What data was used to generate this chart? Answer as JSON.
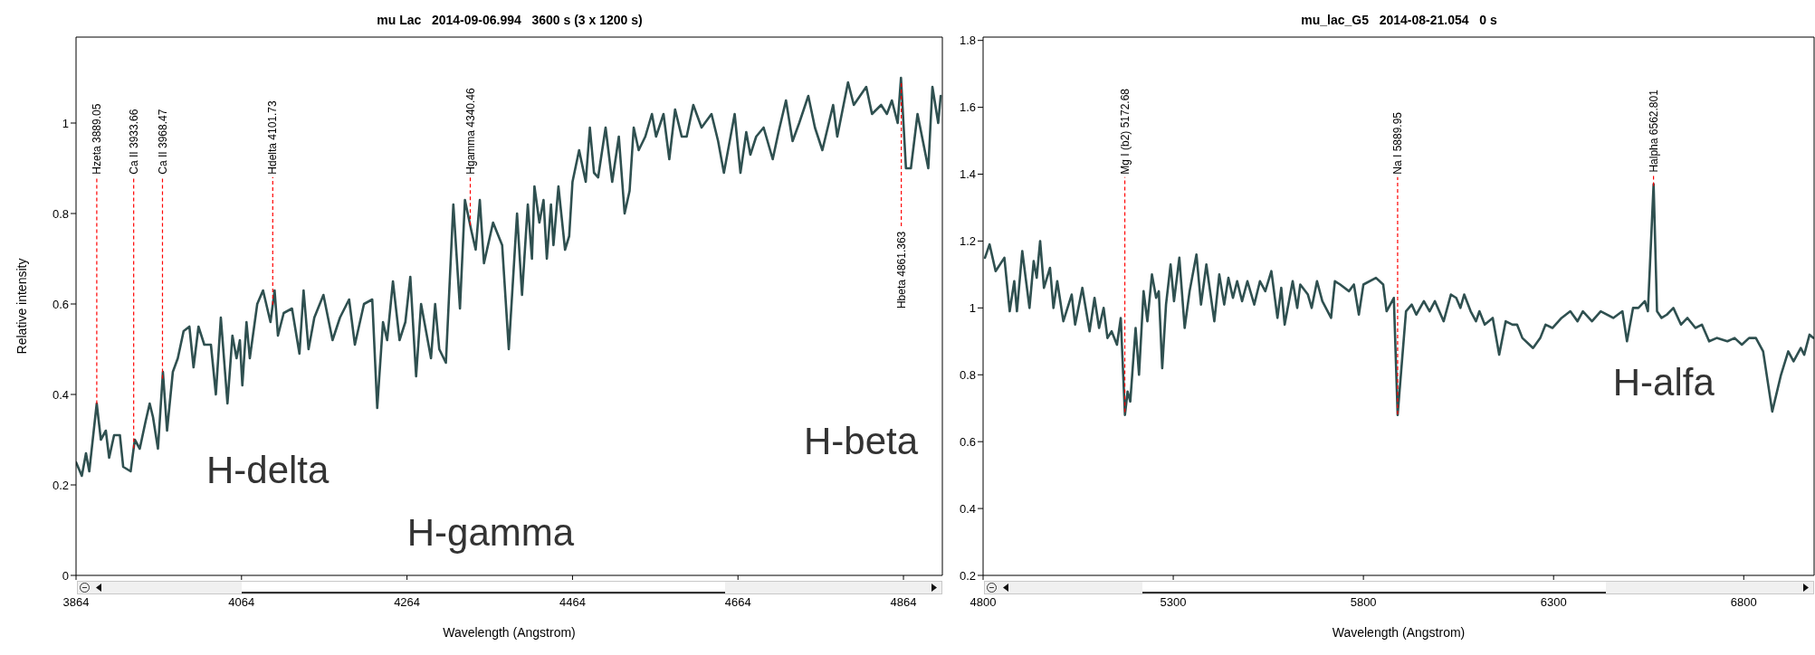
{
  "chart_data": [
    {
      "type": "line",
      "title": "mu Lac   2014-09-06.994   3600 s (3 x 1200 s)",
      "xlabel": "Wavelength (Angstrom)",
      "ylabel": "Relative intensity",
      "xlim": [
        3864,
        4911
      ],
      "ylim": [
        0,
        1.19
      ],
      "xticks": [
        3864,
        4064,
        4264,
        4464,
        4664,
        4864
      ],
      "yticks": [
        0,
        0.2,
        0.4,
        0.6,
        0.8,
        1
      ],
      "series": [
        {
          "color": "#2f5050",
          "x": [
            3864,
            3871,
            3876,
            3880,
            3889,
            3894,
            3900,
            3904,
            3910,
            3917,
            3921,
            3930,
            3935,
            3941,
            3948,
            3953,
            3957,
            3963,
            3969,
            3974,
            3981,
            3987,
            3994,
            4001,
            4006,
            4012,
            4019,
            4027,
            4033,
            4039,
            4047,
            4053,
            4058,
            4062,
            4065,
            4070,
            4074,
            4083,
            4090,
            4099,
            4104,
            4108,
            4115,
            4125,
            4134,
            4139,
            4145,
            4152,
            4163,
            4174,
            4183,
            4194,
            4201,
            4212,
            4222,
            4228,
            4235,
            4240,
            4247,
            4255,
            4262,
            4268,
            4275,
            4281,
            4293,
            4298,
            4303,
            4311,
            4320,
            4328,
            4334,
            4342,
            4347,
            4352,
            4357,
            4368,
            4379,
            4387,
            4397,
            4403,
            4410,
            4415,
            4418,
            4424,
            4429,
            4433,
            4438,
            4441,
            4447,
            4455,
            4460,
            4464,
            4472,
            4480,
            4485,
            4490,
            4495,
            4504,
            4512,
            4520,
            4527,
            4533,
            4538,
            4544,
            4552,
            4560,
            4565,
            4574,
            4581,
            4588,
            4596,
            4602,
            4610,
            4620,
            4632,
            4640,
            4647,
            4660,
            4667,
            4674,
            4679,
            4686,
            4695,
            4706,
            4713,
            4722,
            4730,
            4738,
            4749,
            4757,
            4766,
            4779,
            4784,
            4797,
            4804,
            4819,
            4826,
            4837,
            4844,
            4850,
            4857,
            4861,
            4867,
            4873,
            4881,
            4894,
            4899,
            4906,
            4909
          ],
          "values": [
            0.25,
            0.22,
            0.27,
            0.23,
            0.38,
            0.3,
            0.32,
            0.26,
            0.31,
            0.31,
            0.24,
            0.23,
            0.3,
            0.28,
            0.34,
            0.38,
            0.35,
            0.28,
            0.45,
            0.32,
            0.45,
            0.48,
            0.54,
            0.55,
            0.46,
            0.55,
            0.51,
            0.51,
            0.4,
            0.57,
            0.38,
            0.53,
            0.48,
            0.52,
            0.42,
            0.56,
            0.48,
            0.6,
            0.63,
            0.56,
            0.63,
            0.53,
            0.58,
            0.59,
            0.49,
            0.63,
            0.5,
            0.57,
            0.62,
            0.52,
            0.57,
            0.61,
            0.51,
            0.6,
            0.61,
            0.37,
            0.56,
            0.52,
            0.65,
            0.52,
            0.56,
            0.66,
            0.44,
            0.6,
            0.48,
            0.6,
            0.5,
            0.47,
            0.82,
            0.59,
            0.83,
            0.76,
            0.72,
            0.83,
            0.69,
            0.78,
            0.73,
            0.5,
            0.8,
            0.62,
            0.82,
            0.7,
            0.86,
            0.78,
            0.83,
            0.7,
            0.82,
            0.73,
            0.86,
            0.72,
            0.75,
            0.87,
            0.94,
            0.87,
            0.99,
            0.89,
            0.88,
            0.99,
            0.87,
            0.97,
            0.8,
            0.85,
            0.99,
            0.94,
            0.97,
            1.02,
            0.97,
            1.02,
            0.92,
            1.03,
            0.97,
            0.97,
            1.04,
            0.99,
            1.02,
            0.96,
            0.89,
            1.02,
            0.89,
            0.98,
            0.93,
            0.97,
            0.99,
            0.92,
            0.98,
            1.05,
            0.96,
            1.0,
            1.06,
            0.99,
            0.94,
            1.04,
            0.97,
            1.09,
            1.04,
            1.08,
            1.02,
            1.04,
            1.02,
            1.05,
            1.0,
            1.1,
            0.9,
            0.9,
            1.02,
            0.9,
            1.08,
            1.0,
            1.06
          ]
        }
      ],
      "ref_lines": [
        {
          "axis": "x",
          "value": 3889.05,
          "label": "Hzeta 3889.05",
          "color": "#ff0000",
          "line_style": "dashed"
        },
        {
          "axis": "x",
          "value": 3933.66,
          "label": "Ca II 3933.66",
          "color": "#ff0000",
          "line_style": "dashed"
        },
        {
          "axis": "x",
          "value": 3968.47,
          "label": "Ca II 3968.47",
          "color": "#ff0000",
          "line_style": "dashed"
        },
        {
          "axis": "x",
          "value": 4101.73,
          "label": "Hdelta 4101.73",
          "color": "#ff0000",
          "line_style": "dashed"
        },
        {
          "axis": "x",
          "value": 4340.46,
          "label": "Hgamma 4340.46",
          "color": "#ff0000",
          "line_style": "dashed"
        },
        {
          "axis": "x",
          "value": 4861.363,
          "label": "Hbeta 4861.363",
          "color": "#ff0000",
          "line_style": "dashed"
        }
      ],
      "annotations": [
        "H-delta",
        "H-gamma",
        "H-beta"
      ]
    },
    {
      "type": "line",
      "title": "mu_lac_G5   2014-08-21.054   0 s",
      "xlabel": "Wavelength (Angstrom)",
      "xlim": [
        4800,
        6985
      ],
      "ylim": [
        0.2,
        1.81
      ],
      "xticks": [
        4800,
        5300,
        5800,
        6300,
        6800
      ],
      "yticks": [
        0.2,
        0.4,
        0.6,
        0.8,
        1,
        1.2,
        1.4,
        1.6,
        1.8
      ],
      "series": [
        {
          "color": "#2f5050",
          "x": [
            4805,
            4817,
            4833,
            4856,
            4870,
            4882,
            4889,
            4903,
            4922,
            4933,
            4941,
            4950,
            4960,
            4976,
            4985,
            4995,
            5011,
            5033,
            5042,
            5061,
            5080,
            5093,
            5105,
            5117,
            5127,
            5138,
            5152,
            5162,
            5173,
            5180,
            5187,
            5201,
            5210,
            5222,
            5232,
            5244,
            5255,
            5262,
            5271,
            5281,
            5293,
            5302,
            5316,
            5330,
            5343,
            5361,
            5373,
            5387,
            5408,
            5421,
            5434,
            5445,
            5457,
            5468,
            5481,
            5495,
            5513,
            5528,
            5542,
            5558,
            5574,
            5584,
            5593,
            5614,
            5626,
            5634,
            5654,
            5664,
            5678,
            5692,
            5715,
            5725,
            5739,
            5762,
            5775,
            5788,
            5800,
            5833,
            5852,
            5861,
            5880,
            5890,
            5912,
            5927,
            5939,
            5959,
            5974,
            5988,
            6011,
            6030,
            6044,
            6055,
            6065,
            6082,
            6096,
            6105,
            6119,
            6140,
            6157,
            6174,
            6192,
            6204,
            6218,
            6246,
            6265,
            6279,
            6297,
            6321,
            6344,
            6363,
            6377,
            6401,
            6424,
            6457,
            6481,
            6493,
            6509,
            6523,
            6540,
            6548,
            6563,
            6572,
            6584,
            6598,
            6615,
            6635,
            6652,
            6673,
            6690,
            6709,
            6729,
            6757,
            6776,
            6795,
            6814,
            6832,
            6851,
            6875,
            6898,
            6917,
            6931,
            6950,
            6959,
            6973,
            6983
          ],
          "values": [
            1.15,
            1.19,
            1.11,
            1.15,
            0.99,
            1.08,
            0.99,
            1.17,
            1.0,
            1.14,
            1.09,
            1.2,
            1.06,
            1.12,
            1.0,
            1.08,
            0.96,
            1.04,
            0.95,
            1.06,
            0.93,
            1.03,
            0.94,
            1.0,
            0.91,
            0.93,
            0.89,
            0.97,
            0.68,
            0.75,
            0.72,
            0.94,
            0.8,
            1.05,
            0.96,
            1.1,
            1.03,
            1.05,
            0.82,
            1.01,
            1.13,
            1.02,
            1.15,
            0.94,
            1.05,
            1.16,
            1.01,
            1.13,
            0.96,
            1.1,
            1.01,
            1.09,
            1.03,
            1.08,
            1.02,
            1.08,
            1.01,
            1.08,
            1.05,
            1.11,
            0.97,
            1.06,
            0.95,
            1.08,
            1.0,
            1.07,
            1.04,
            1.0,
            1.08,
            1.02,
            0.97,
            1.08,
            1.07,
            1.05,
            1.07,
            0.98,
            1.07,
            1.09,
            1.07,
            0.99,
            1.03,
            0.68,
            0.99,
            1.01,
            0.98,
            1.02,
            0.99,
            1.02,
            0.96,
            1.04,
            1.03,
            1.0,
            1.04,
            0.99,
            0.96,
            0.99,
            0.95,
            0.97,
            0.86,
            0.96,
            0.95,
            0.95,
            0.91,
            0.88,
            0.91,
            0.95,
            0.94,
            0.97,
            0.99,
            0.96,
            0.99,
            0.96,
            0.99,
            0.97,
            0.99,
            0.9,
            1.0,
            1.0,
            1.02,
            0.99,
            1.37,
            0.99,
            0.97,
            0.98,
            1.0,
            0.95,
            0.97,
            0.94,
            0.95,
            0.9,
            0.91,
            0.9,
            0.91,
            0.89,
            0.91,
            0.91,
            0.87,
            0.69,
            0.8,
            0.87,
            0.84,
            0.88,
            0.86,
            0.92,
            0.91
          ]
        }
      ],
      "ref_lines": [
        {
          "axis": "x",
          "value": 5172.68,
          "label": "Mg I (b2) 5172.68",
          "color": "#ff0000",
          "line_style": "dashed"
        },
        {
          "axis": "x",
          "value": 5889.95,
          "label": "Na I 5889.95",
          "color": "#ff0000",
          "line_style": "dashed"
        },
        {
          "axis": "x",
          "value": 6562.801,
          "label": "Halpha 6562.801",
          "color": "#ff0000",
          "line_style": "dashed"
        }
      ],
      "annotations": [
        "H-alfa"
      ]
    }
  ]
}
